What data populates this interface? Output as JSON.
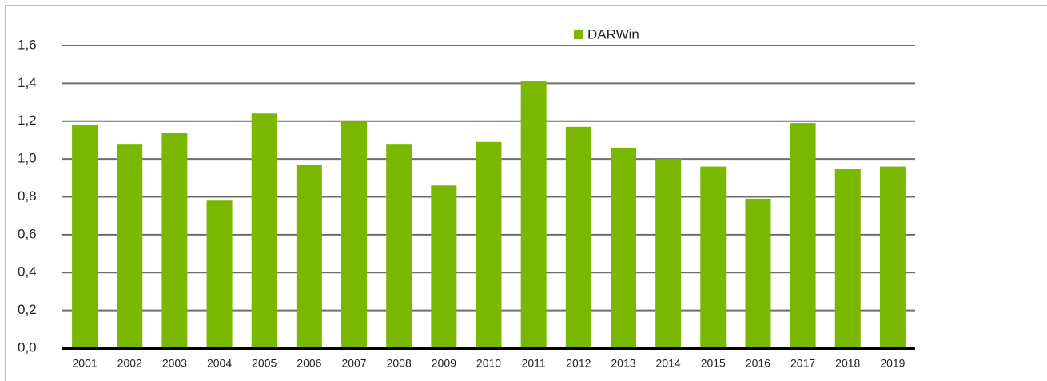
{
  "chart_data": {
    "type": "bar",
    "categories": [
      "2001",
      "2002",
      "2003",
      "2004",
      "2005",
      "2006",
      "2007",
      "2008",
      "2009",
      "2010",
      "2011",
      "2012",
      "2013",
      "2014",
      "2015",
      "2016",
      "2017",
      "2018",
      "2019"
    ],
    "series": [
      {
        "name": "DARWin",
        "color": "#7ab800",
        "values": [
          1.18,
          1.08,
          1.14,
          0.78,
          1.24,
          0.97,
          1.2,
          1.08,
          0.86,
          1.09,
          1.41,
          1.17,
          1.06,
          1.0,
          0.96,
          0.79,
          1.19,
          0.95,
          0.96
        ]
      }
    ],
    "ylim": [
      0,
      1.6
    ],
    "yticks": [
      {
        "value": 0,
        "label": "0,0"
      },
      {
        "value": 0.2,
        "label": "0,2"
      },
      {
        "value": 0.4,
        "label": "0,4"
      },
      {
        "value": 0.6,
        "label": "0,6"
      },
      {
        "value": 0.8,
        "label": "0,8"
      },
      {
        "value": 1.0,
        "label": "1,0"
      },
      {
        "value": 1.2,
        "label": "1,2"
      },
      {
        "value": 1.4,
        "label": "1,4"
      },
      {
        "value": 1.6,
        "label": "1,6"
      }
    ],
    "grid": true,
    "legend": "top"
  }
}
